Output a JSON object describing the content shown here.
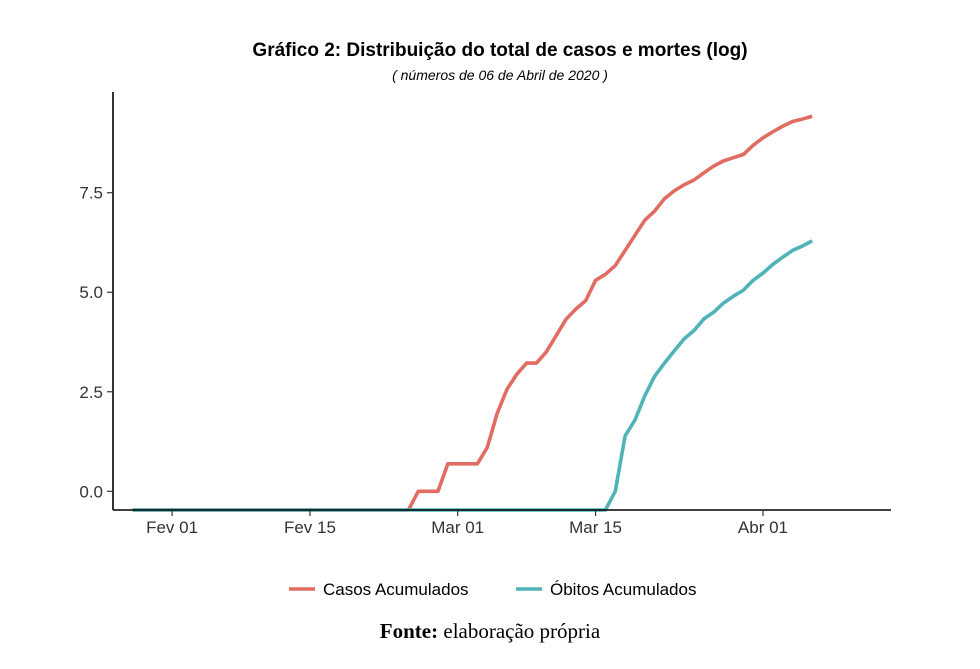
{
  "caption": {
    "bold": "Fonte:",
    "text": " elaboração própria"
  },
  "chart_data": {
    "type": "line",
    "title": "Gráfico 2: Distribuição do total de casos e mortes (log)",
    "subtitle": "( números de 06 de Abril de 2020 )",
    "x_ticks": [
      {
        "date": "2020-02-01",
        "label": "Fev 01"
      },
      {
        "date": "2020-02-15",
        "label": "Fev 15"
      },
      {
        "date": "2020-03-01",
        "label": "Mar 01"
      },
      {
        "date": "2020-03-15",
        "label": "Mar 15"
      },
      {
        "date": "2020-04-01",
        "label": "Abr 01"
      }
    ],
    "y_ticks": [
      {
        "value": 0.0,
        "label": "0.0"
      },
      {
        "value": 2.5,
        "label": "2.5"
      },
      {
        "value": 5.0,
        "label": "5.0"
      },
      {
        "value": 7.5,
        "label": "7.5"
      }
    ],
    "xlim": [
      "2020-01-26",
      "2020-04-14"
    ],
    "ylim": [
      -0.47,
      10.03
    ],
    "legend_position": "bottom",
    "grid": false,
    "series": [
      {
        "name": "Casos Acumulados",
        "color": "#E06C62",
        "points": [
          [
            "2020-01-28",
            -0.47
          ],
          [
            "2020-02-25",
            -0.47
          ],
          [
            "2020-02-26",
            0.0
          ],
          [
            "2020-02-28",
            0.0
          ],
          [
            "2020-02-29",
            0.69
          ],
          [
            "2020-03-03",
            0.69
          ],
          [
            "2020-03-04",
            1.1
          ],
          [
            "2020-03-05",
            1.95
          ],
          [
            "2020-03-06",
            2.56
          ],
          [
            "2020-03-07",
            2.94
          ],
          [
            "2020-03-08",
            3.22
          ],
          [
            "2020-03-09",
            3.22
          ],
          [
            "2020-03-10",
            3.5
          ],
          [
            "2020-03-11",
            3.91
          ],
          [
            "2020-03-12",
            4.32
          ],
          [
            "2020-03-13",
            4.58
          ],
          [
            "2020-03-14",
            4.79
          ],
          [
            "2020-03-15",
            5.3
          ],
          [
            "2020-03-16",
            5.45
          ],
          [
            "2020-03-17",
            5.67
          ],
          [
            "2020-03-18",
            6.05
          ],
          [
            "2020-03-19",
            6.43
          ],
          [
            "2020-03-20",
            6.81
          ],
          [
            "2020-03-21",
            7.04
          ],
          [
            "2020-03-22",
            7.35
          ],
          [
            "2020-03-23",
            7.55
          ],
          [
            "2020-03-24",
            7.7
          ],
          [
            "2020-03-25",
            7.82
          ],
          [
            "2020-03-26",
            8.0
          ],
          [
            "2020-03-27",
            8.17
          ],
          [
            "2020-03-28",
            8.3
          ],
          [
            "2020-03-29",
            8.38
          ],
          [
            "2020-03-30",
            8.46
          ],
          [
            "2020-03-31",
            8.69
          ],
          [
            "2020-04-01",
            8.88
          ],
          [
            "2020-04-02",
            9.03
          ],
          [
            "2020-04-03",
            9.17
          ],
          [
            "2020-04-04",
            9.29
          ],
          [
            "2020-04-05",
            9.35
          ],
          [
            "2020-04-06",
            9.42
          ]
        ]
      },
      {
        "name": "Óbitos Acumulados",
        "color": "#4FB3B8",
        "points": [
          [
            "2020-01-28",
            -0.47
          ],
          [
            "2020-03-16",
            -0.47
          ],
          [
            "2020-03-17",
            0.0
          ],
          [
            "2020-03-18",
            1.39
          ],
          [
            "2020-03-19",
            1.79
          ],
          [
            "2020-03-20",
            2.4
          ],
          [
            "2020-03-21",
            2.89
          ],
          [
            "2020-03-22",
            3.22
          ],
          [
            "2020-03-23",
            3.53
          ],
          [
            "2020-03-24",
            3.83
          ],
          [
            "2020-03-25",
            4.04
          ],
          [
            "2020-03-26",
            4.33
          ],
          [
            "2020-03-27",
            4.5
          ],
          [
            "2020-03-28",
            4.73
          ],
          [
            "2020-03-29",
            4.9
          ],
          [
            "2020-03-30",
            5.05
          ],
          [
            "2020-03-31",
            5.3
          ],
          [
            "2020-04-01",
            5.48
          ],
          [
            "2020-04-02",
            5.7
          ],
          [
            "2020-04-03",
            5.88
          ],
          [
            "2020-04-04",
            6.05
          ],
          [
            "2020-04-05",
            6.16
          ],
          [
            "2020-04-06",
            6.29
          ]
        ]
      }
    ]
  }
}
